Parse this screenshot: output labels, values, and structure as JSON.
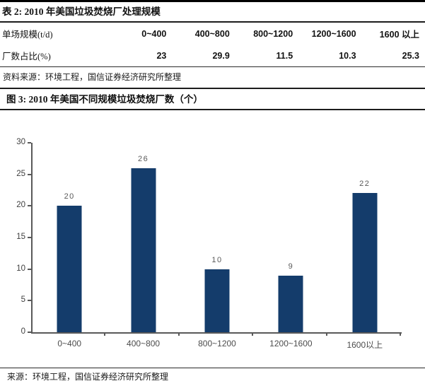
{
  "table": {
    "title": "表 2: 2010 年美国垃圾焚烧厂处理规模",
    "col_header_label": "单场规模(t/d)",
    "row_label": "厂数占比(%)",
    "columns": [
      "0~400",
      "400~800",
      "800~1200",
      "1200~1600",
      "1600 以上"
    ],
    "values": [
      "23",
      "29.9",
      "11.5",
      "10.3",
      "25.3"
    ],
    "source": "资料来源：环境工程，国信证券经济研究所整理"
  },
  "figure": {
    "title": "图 3: 2010 年美国不同规模垃圾焚烧厂数（个）",
    "source": "来源：环境工程，国信证券经济研究所整理"
  },
  "chart_data": {
    "type": "bar",
    "categories": [
      "0~400",
      "400~800",
      "800~1200",
      "1200~1600",
      "1600以上"
    ],
    "values": [
      20,
      26,
      10,
      9,
      22
    ],
    "title": "2010 年美国不同规模垃圾焚烧厂数（个）",
    "xlabel": "",
    "ylabel": "",
    "ylim": [
      0,
      30
    ],
    "yticks": [
      0,
      5,
      10,
      15,
      20,
      25,
      30
    ],
    "grid": false,
    "legend": false,
    "bar_color": "#143c6b",
    "axis_color": "#595959",
    "label_color": "#595959"
  },
  "colors": {
    "rule": "#1c1c1c",
    "background": "#ffffff"
  }
}
